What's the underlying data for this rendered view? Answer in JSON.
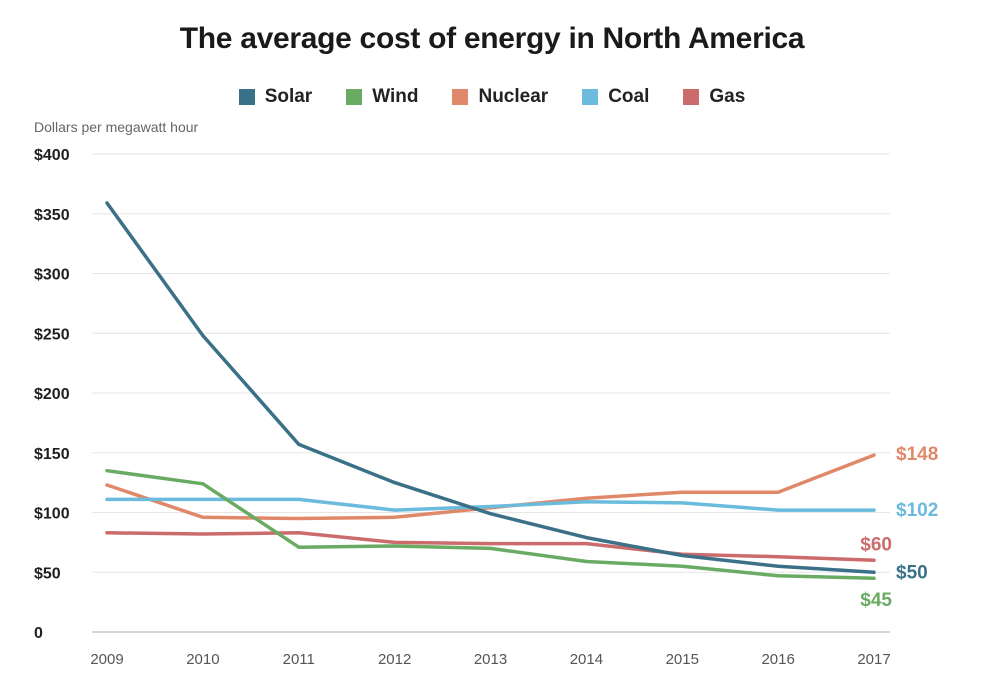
{
  "chart_data": {
    "type": "line",
    "title": "The average cost of energy in North America",
    "ylabel": "Dollars per megawatt hour",
    "xlabel": "",
    "x": [
      "2009",
      "2010",
      "2011",
      "2012",
      "2013",
      "2014",
      "2015",
      "2016",
      "2017"
    ],
    "ylim": [
      0,
      400
    ],
    "yticks": [
      0,
      50,
      100,
      150,
      200,
      250,
      300,
      350,
      400
    ],
    "ytick_labels": [
      "0",
      "$50",
      "$100",
      "$150",
      "$200",
      "$250",
      "$300",
      "$350",
      "$400"
    ],
    "grid": true,
    "legend_position": "top-center",
    "series": [
      {
        "name": "Solar",
        "color": "#3b7188",
        "values": [
          359,
          248,
          157,
          125,
          99,
          79,
          64,
          55,
          50
        ],
        "end_label": "$50"
      },
      {
        "name": "Wind",
        "color": "#6aab63",
        "values": [
          135,
          124,
          71,
          72,
          70,
          59,
          55,
          47,
          45
        ],
        "end_label": "$45"
      },
      {
        "name": "Nuclear",
        "color": "#e0896a",
        "values": [
          123,
          96,
          95,
          96,
          104,
          112,
          117,
          117,
          148
        ],
        "end_label": "$148"
      },
      {
        "name": "Coal",
        "color": "#6bbbdd",
        "values": [
          111,
          111,
          111,
          102,
          105,
          109,
          108,
          102,
          102
        ],
        "end_label": "$102"
      },
      {
        "name": "Gas",
        "color": "#cc6b6b",
        "values": [
          83,
          82,
          83,
          75,
          74,
          74,
          65,
          63,
          60
        ],
        "end_label": "$60"
      }
    ]
  }
}
